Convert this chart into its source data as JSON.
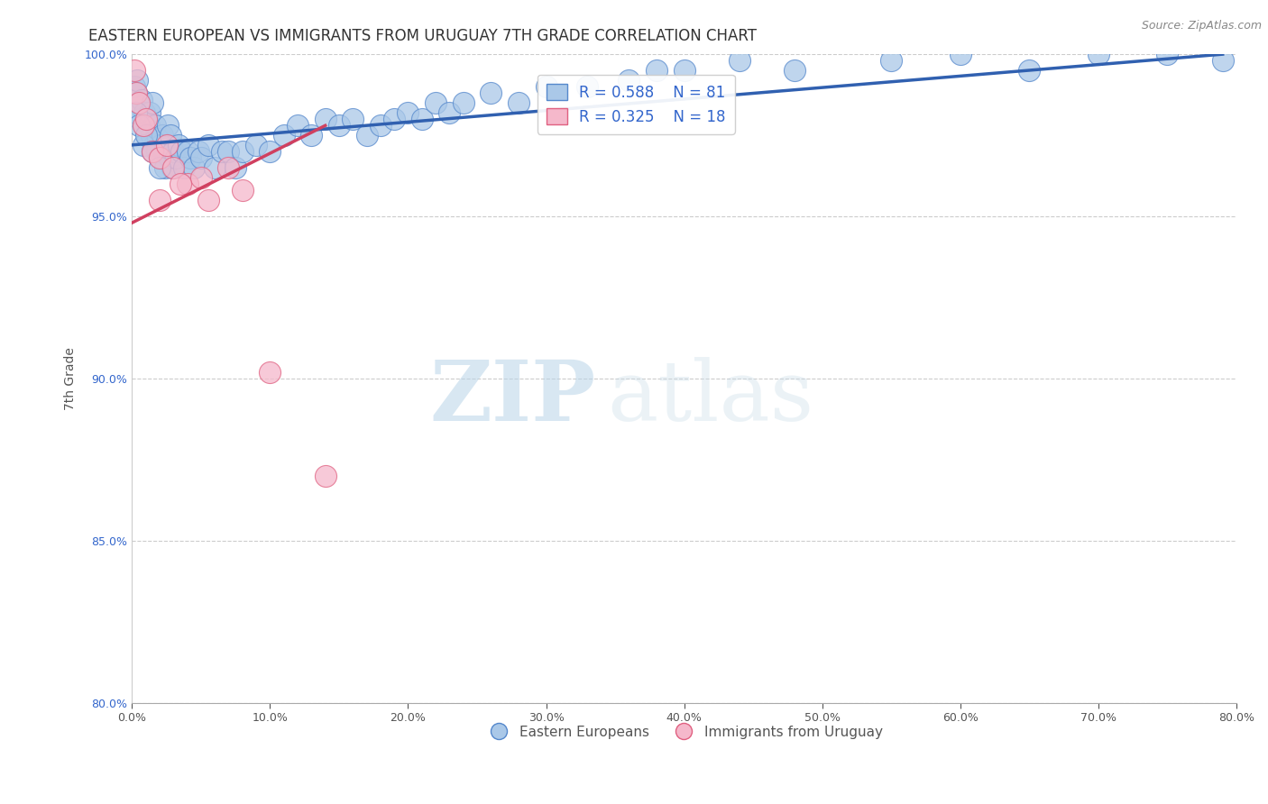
{
  "title": "EASTERN EUROPEAN VS IMMIGRANTS FROM URUGUAY 7TH GRADE CORRELATION CHART",
  "source": "Source: ZipAtlas.com",
  "ylabel": "7th Grade",
  "xlim": [
    0.0,
    80.0
  ],
  "ylim": [
    80.0,
    100.0
  ],
  "xticks": [
    0.0,
    10.0,
    20.0,
    30.0,
    40.0,
    50.0,
    60.0,
    70.0,
    80.0
  ],
  "yticks": [
    80.0,
    85.0,
    90.0,
    95.0,
    100.0
  ],
  "xtick_labels": [
    "0.0%",
    "10.0%",
    "20.0%",
    "30.0%",
    "40.0%",
    "50.0%",
    "60.0%",
    "70.0%",
    "80.0%"
  ],
  "ytick_labels": [
    "80.0%",
    "85.0%",
    "90.0%",
    "95.0%",
    "100.0%"
  ],
  "blue_label": "Eastern Europeans",
  "pink_label": "Immigrants from Uruguay",
  "blue_R": 0.588,
  "blue_N": 81,
  "pink_R": 0.325,
  "pink_N": 18,
  "blue_color": "#aac8e8",
  "pink_color": "#f5b8cb",
  "blue_edge_color": "#5588cc",
  "pink_edge_color": "#e06080",
  "blue_line_color": "#3060b0",
  "pink_line_color": "#d04060",
  "legend_text_color": "#3366cc",
  "blue_scatter_x": [
    0.2,
    0.3,
    0.4,
    0.5,
    0.6,
    0.7,
    0.8,
    0.9,
    1.0,
    1.1,
    1.2,
    1.3,
    1.4,
    1.5,
    1.6,
    1.7,
    1.8,
    1.9,
    2.0,
    2.1,
    2.2,
    2.3,
    2.4,
    2.5,
    2.6,
    2.7,
    2.8,
    2.9,
    3.0,
    3.2,
    3.4,
    3.6,
    3.8,
    4.0,
    4.2,
    4.5,
    4.8,
    5.0,
    5.5,
    6.0,
    6.5,
    7.0,
    7.5,
    8.0,
    9.0,
    10.0,
    11.0,
    12.0,
    13.0,
    14.0,
    15.0,
    16.0,
    17.0,
    18.0,
    19.0,
    20.0,
    21.0,
    22.0,
    23.0,
    24.0,
    26.0,
    28.0,
    30.0,
    33.0,
    36.0,
    38.0,
    40.0,
    44.0,
    48.0,
    55.0,
    60.0,
    65.0,
    70.0,
    75.0,
    79.0,
    0.3,
    0.5,
    0.8,
    1.0,
    1.5,
    2.0
  ],
  "blue_scatter_y": [
    99.0,
    98.8,
    99.2,
    98.5,
    98.0,
    98.6,
    97.8,
    98.2,
    98.0,
    97.5,
    97.8,
    98.2,
    97.5,
    98.5,
    97.2,
    97.8,
    97.0,
    97.4,
    96.8,
    97.2,
    97.5,
    97.0,
    96.5,
    97.0,
    97.8,
    96.8,
    97.5,
    96.5,
    97.0,
    96.8,
    97.2,
    97.0,
    96.5,
    97.0,
    96.8,
    96.5,
    97.0,
    96.8,
    97.2,
    96.5,
    97.0,
    97.0,
    96.5,
    97.0,
    97.2,
    97.0,
    97.5,
    97.8,
    97.5,
    98.0,
    97.8,
    98.0,
    97.5,
    97.8,
    98.0,
    98.2,
    98.0,
    98.5,
    98.2,
    98.5,
    98.8,
    98.5,
    99.0,
    99.0,
    99.2,
    99.5,
    99.5,
    99.8,
    99.5,
    99.8,
    100.0,
    99.5,
    100.0,
    100.0,
    99.8,
    98.2,
    97.8,
    97.2,
    97.5,
    97.0,
    96.5
  ],
  "pink_scatter_x": [
    0.15,
    0.3,
    0.5,
    0.8,
    1.0,
    1.5,
    2.0,
    2.5,
    3.0,
    4.0,
    5.0,
    7.0,
    8.0,
    2.0,
    3.5,
    5.5,
    10.0,
    14.0
  ],
  "pink_scatter_y": [
    99.5,
    98.8,
    98.5,
    97.8,
    98.0,
    97.0,
    96.8,
    97.2,
    96.5,
    96.0,
    96.2,
    96.5,
    95.8,
    95.5,
    96.0,
    95.5,
    90.2,
    87.0
  ],
  "blue_line_x0": 0.0,
  "blue_line_x1": 79.0,
  "blue_line_y0": 97.2,
  "blue_line_y1": 100.0,
  "pink_line_x0": 0.0,
  "pink_line_x1": 14.0,
  "pink_line_y0": 94.8,
  "pink_line_y1": 97.8,
  "watermark_zip": "ZIP",
  "watermark_atlas": "atlas",
  "title_fontsize": 12,
  "axis_label_fontsize": 10,
  "tick_fontsize": 9,
  "legend_fontsize": 12
}
